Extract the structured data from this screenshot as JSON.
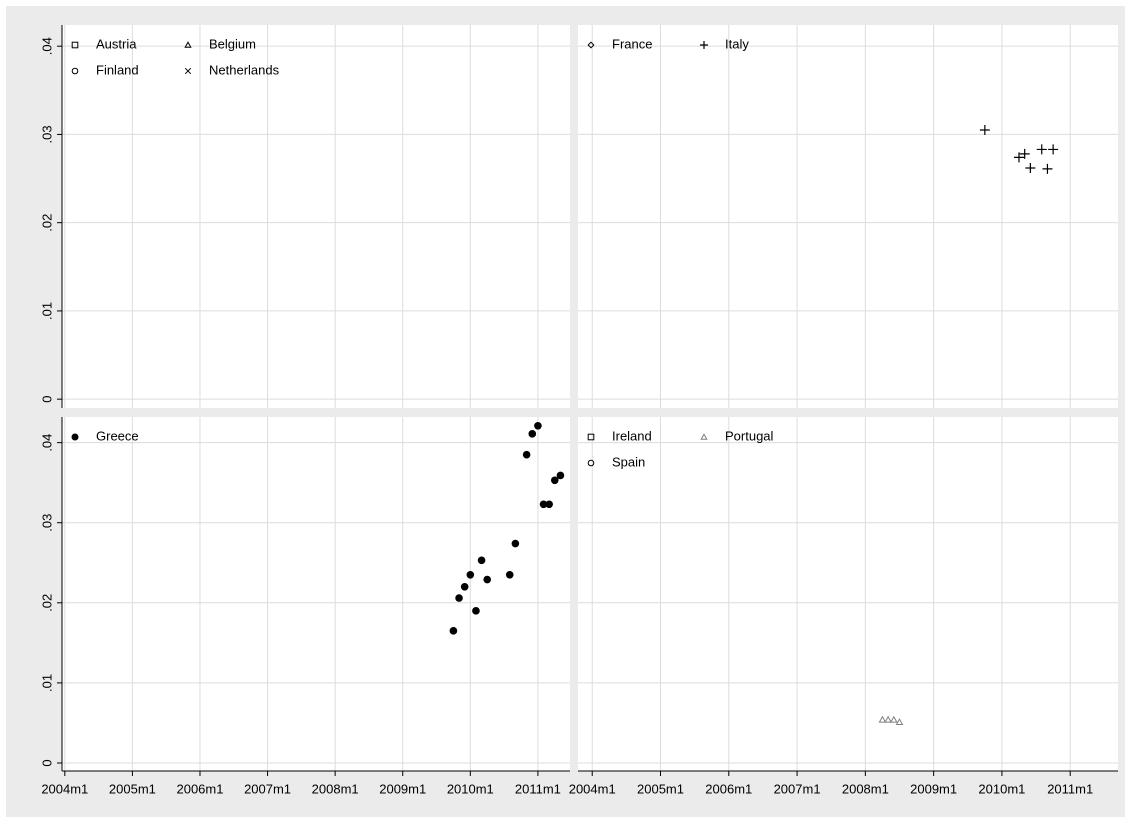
{
  "chart_data": [
    {
      "type": "scatter",
      "xlim": [
        527.5,
        617.7
      ],
      "ylim": [
        -0.001,
        0.0424
      ],
      "xticks": [
        528,
        540,
        552,
        564,
        576,
        588,
        600,
        612
      ],
      "yticks": [
        {
          "value": 0,
          "label": "0"
        },
        {
          "value": 0.01,
          "label": ".01"
        },
        {
          "value": 0.02,
          "label": ".02"
        },
        {
          "value": 0.03,
          "label": ".03"
        },
        {
          "value": 0.04,
          "label": ".04"
        }
      ],
      "xtick_labels": false,
      "ytick_labels": true,
      "grid": true,
      "legend": "top-left",
      "legend_columns": 2,
      "series": [
        {
          "name": "Austria",
          "color": "#000000",
          "marker": "square",
          "x": [],
          "values": []
        },
        {
          "name": "Belgium",
          "color": "#000000",
          "marker": "triangle",
          "x": [],
          "values": []
        },
        {
          "name": "Finland",
          "color": "#000000",
          "marker": "circle",
          "x": [],
          "values": []
        },
        {
          "name": "Netherlands",
          "color": "#000000",
          "marker": "cross",
          "x": [],
          "values": []
        }
      ]
    },
    {
      "type": "scatter",
      "xlim": [
        525.5,
        620.4
      ],
      "ylim": [
        -0.001,
        0.0424
      ],
      "xticks": [
        528,
        540,
        552,
        564,
        576,
        588,
        600,
        612
      ],
      "yticks": [
        0,
        0.01,
        0.02,
        0.03,
        0.04
      ],
      "xtick_labels": false,
      "ytick_labels": false,
      "grid": true,
      "legend": "top-left",
      "legend_columns": 2,
      "series": [
        {
          "name": "France",
          "color": "#000000",
          "marker": "diamond",
          "x": [],
          "values": []
        },
        {
          "name": "Italy",
          "color": "#000000",
          "marker": "plus",
          "x": [
            597,
            603,
            604,
            605,
            607,
            608,
            609
          ],
          "values": [
            0.0305,
            0.0274,
            0.0278,
            0.0262,
            0.0283,
            0.0261,
            0.0283
          ]
        }
      ]
    },
    {
      "type": "scatter",
      "xlim": [
        527.5,
        617.7
      ],
      "ylim": [
        -0.001,
        0.0432
      ],
      "xticks": [
        {
          "value": 528,
          "label": "2004m1"
        },
        {
          "value": 540,
          "label": "2005m1"
        },
        {
          "value": 552,
          "label": "2006m1"
        },
        {
          "value": 564,
          "label": "2007m1"
        },
        {
          "value": 576,
          "label": "2008m1"
        },
        {
          "value": 588,
          "label": "2009m1"
        },
        {
          "value": 600,
          "label": "2010m1"
        },
        {
          "value": 612,
          "label": "2011m1"
        }
      ],
      "yticks": [
        {
          "value": 0,
          "label": "0"
        },
        {
          "value": 0.01,
          "label": ".01"
        },
        {
          "value": 0.02,
          "label": ".02"
        },
        {
          "value": 0.03,
          "label": ".03"
        },
        {
          "value": 0.04,
          "label": ".04"
        }
      ],
      "xtick_labels": true,
      "ytick_labels": true,
      "grid": true,
      "legend": "top-left",
      "legend_columns": 2,
      "series": [
        {
          "name": "Greece",
          "color": "#000000",
          "marker": "filled-circle",
          "x": [
            597,
            598,
            599,
            600,
            601,
            602,
            603,
            607,
            608,
            610,
            611,
            612,
            613,
            614,
            615,
            616
          ],
          "values": [
            0.0165,
            0.0206,
            0.022,
            0.0235,
            0.019,
            0.0253,
            0.0229,
            0.0235,
            0.0274,
            0.0385,
            0.0411,
            0.0421,
            0.0323,
            0.0323,
            0.0353,
            0.0359
          ]
        }
      ]
    },
    {
      "type": "scatter",
      "xlim": [
        525.5,
        620.4
      ],
      "ylim": [
        -0.001,
        0.0432
      ],
      "xticks": [
        {
          "value": 528,
          "label": "2004m1"
        },
        {
          "value": 540,
          "label": "2005m1"
        },
        {
          "value": 552,
          "label": "2006m1"
        },
        {
          "value": 564,
          "label": "2007m1"
        },
        {
          "value": 576,
          "label": "2008m1"
        },
        {
          "value": 588,
          "label": "2009m1"
        },
        {
          "value": 600,
          "label": "2010m1"
        },
        {
          "value": 612,
          "label": "2011m1"
        }
      ],
      "yticks": [
        0,
        0.01,
        0.02,
        0.03,
        0.04
      ],
      "xtick_labels": true,
      "ytick_labels": false,
      "grid": true,
      "legend": "top-left",
      "legend_columns": 2,
      "series": [
        {
          "name": "Ireland",
          "color": "#000000",
          "marker": "square",
          "x": [],
          "values": []
        },
        {
          "name": "Portugal",
          "color": "#808080",
          "marker": "triangle",
          "x": [
            579,
            580,
            581,
            582
          ],
          "values": [
            0.0054,
            0.0054,
            0.0054,
            0.0051
          ]
        },
        {
          "name": "Spain",
          "color": "#000000",
          "marker": "circle",
          "x": [],
          "values": []
        }
      ]
    }
  ]
}
